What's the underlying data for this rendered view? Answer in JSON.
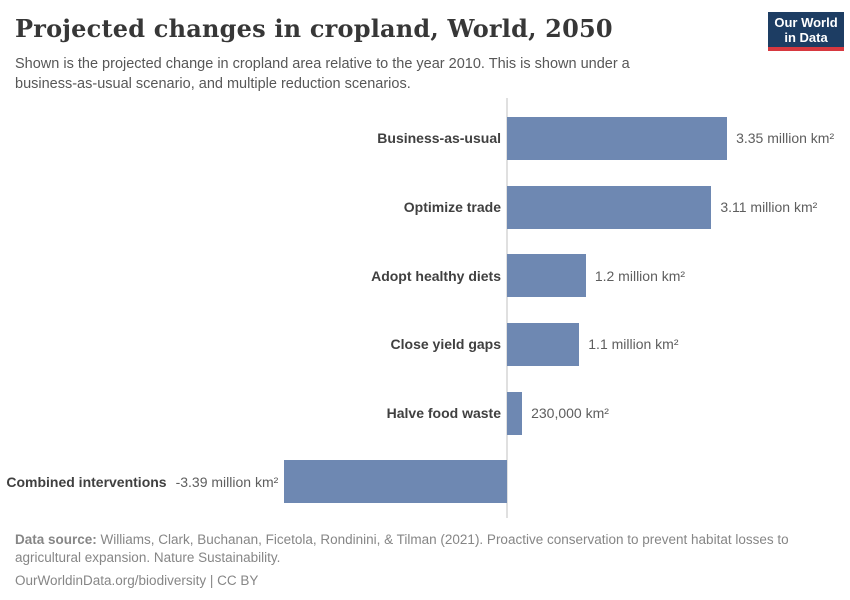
{
  "header": {
    "title": "Projected changes in cropland, World, 2050",
    "subtitle_line1": "Shown is the projected change in cropland area relative to the year 2010. This is shown under a",
    "subtitle_line2": "business-as-usual scenario, and multiple reduction scenarios.",
    "logo": {
      "line1": "Our World",
      "line2": "in Data",
      "bg_color": "#1d3d63",
      "accent_color": "#d7383f"
    }
  },
  "chart_data": {
    "type": "bar",
    "orientation": "horizontal",
    "title": "Projected changes in cropland, World, 2050",
    "unit": "million km²",
    "baseline": 0,
    "xlim": [
      -3.39,
      3.35
    ],
    "grid": false,
    "legend": "none",
    "bar_color": "#6e88b2",
    "axis_color": "#e0e0e0",
    "categories": [
      "Business-as-usual",
      "Optimize trade",
      "Adopt healthy diets",
      "Close yield gaps",
      "Halve food waste",
      "Combined interventions"
    ],
    "values": [
      3.35,
      3.11,
      1.2,
      1.1,
      0.23,
      -3.39
    ],
    "value_labels": [
      "3.35 million km²",
      "3.11 million km²",
      "1.2 million km²",
      "1.1 million km²",
      "230,000 km²",
      "-3.39 million km²"
    ]
  },
  "footer": {
    "datasource_label": "Data source:",
    "datasource_text": " Williams, Clark, Buchanan, Ficetola, Rondinini, & Tilman (2021). Proactive conservation to prevent habitat losses to agricultural expansion. Nature Sustainability.",
    "link_text": "OurWorldinData.org/biodiversity",
    "separator": " | ",
    "license_text": "CC BY"
  }
}
